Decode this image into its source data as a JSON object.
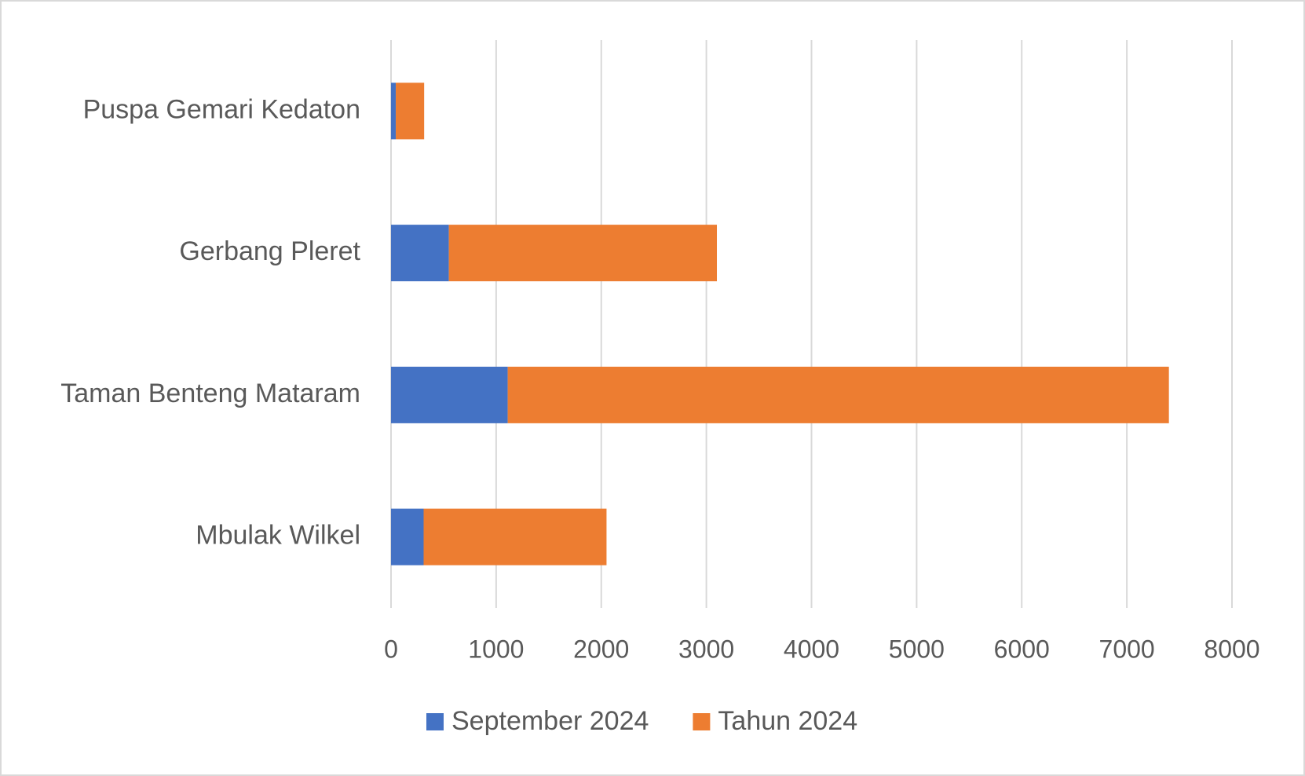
{
  "chart_data": {
    "type": "bar",
    "orientation": "horizontal",
    "stacked": true,
    "categories": [
      "Puspa Gemari Kedaton",
      "Gerbang Pleret",
      "Taman Benteng Mataram",
      "Mbulak Wilkel"
    ],
    "series": [
      {
        "name": "September 2024",
        "color": "#4472c4",
        "values": [
          45,
          550,
          1110,
          310
        ]
      },
      {
        "name": "Tahun 2024",
        "color": "#ed7d31",
        "values": [
          270,
          2550,
          6290,
          1740
        ]
      }
    ],
    "xlim": [
      0,
      8000
    ],
    "xticks": [
      0,
      1000,
      2000,
      3000,
      4000,
      5000,
      6000,
      7000,
      8000
    ],
    "grid": true,
    "legend": "bottom"
  }
}
